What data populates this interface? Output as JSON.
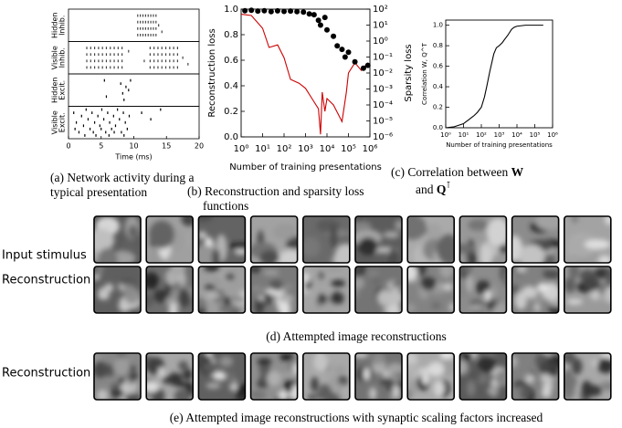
{
  "chart_data": [
    {
      "type": "raster",
      "xlabel": "Time (ms)",
      "xlim": [
        0,
        20
      ],
      "xticks": [
        0,
        5,
        10,
        15,
        20
      ],
      "caption": [
        "(a) Network activity during a",
        "typical presentation"
      ],
      "series": [
        {
          "name": [
            "Hidden",
            "Inhib."
          ],
          "color": "#444444",
          "ylim": [
            0,
            10
          ],
          "x": [
            10.6,
            10.6,
            10.6,
            10.6,
            11,
            11,
            11,
            11,
            11.4,
            11.4,
            11.4,
            11.4,
            11.8,
            11.8,
            11.8,
            11.8,
            12.2,
            12.2,
            12.2,
            12.2,
            12.6,
            12.6,
            12.6,
            12.6,
            13,
            13,
            13,
            13,
            13.4,
            13.4,
            13.4,
            13.4,
            13.8,
            14.3
          ],
          "y": [
            2,
            4,
            6,
            8,
            2,
            4,
            6,
            8,
            2,
            4,
            6,
            8,
            2,
            4,
            6,
            8,
            2,
            4,
            6,
            8,
            2,
            4,
            6,
            8,
            2,
            4,
            6,
            8,
            2,
            4,
            6,
            8,
            5,
            3
          ]
        },
        {
          "name": [
            "Visible",
            "Inhib."
          ],
          "color": "#444444",
          "ylim": [
            0,
            10
          ],
          "x": [
            2.8,
            2.8,
            2.8,
            2.8,
            3.4,
            3.4,
            3.4,
            3.4,
            4,
            4,
            4,
            4,
            4.6,
            4.6,
            4.6,
            4.6,
            5.2,
            5.2,
            5.2,
            5.2,
            5.8,
            5.8,
            5.8,
            5.8,
            6.4,
            6.4,
            6.4,
            6.4,
            7,
            7,
            7,
            7,
            7.6,
            7.6,
            7.6,
            7.6,
            8.2,
            8.2,
            8.2,
            8.2,
            12.5,
            12.5,
            12.5,
            12.5,
            13.1,
            13.1,
            13.1,
            13.1,
            13.7,
            13.7,
            13.7,
            13.7,
            14.3,
            14.3,
            14.3,
            14.3,
            14.9,
            14.9,
            14.9,
            14.9,
            15.5,
            15.5,
            15.5,
            15.5,
            16.1,
            16.1,
            16.1,
            16.1,
            16.7,
            16.7,
            16.7,
            16.7,
            17.5,
            18.3,
            9.2,
            11.6
          ],
          "y": [
            2,
            4,
            6,
            8,
            2,
            4,
            6,
            8,
            2,
            4,
            6,
            8,
            2,
            4,
            6,
            8,
            2,
            4,
            6,
            8,
            2,
            4,
            6,
            8,
            2,
            4,
            6,
            8,
            2,
            4,
            6,
            8,
            2,
            4,
            6,
            8,
            2,
            4,
            6,
            8,
            2,
            4,
            6,
            8,
            2,
            4,
            6,
            8,
            2,
            4,
            6,
            8,
            2,
            4,
            6,
            8,
            2,
            4,
            6,
            8,
            2,
            4,
            6,
            8,
            2,
            4,
            6,
            8,
            2,
            4,
            6,
            8,
            5,
            3,
            7,
            4
          ]
        },
        {
          "name": [
            "Hidden",
            "Excit."
          ],
          "color": "#000000",
          "ylim": [
            0,
            10
          ],
          "x": [
            5.5,
            8,
            8.8,
            8.3,
            9.2,
            8.5,
            5.8,
            9.5
          ],
          "y": [
            8,
            7,
            6,
            4,
            5,
            2,
            3,
            8
          ]
        },
        {
          "name": [
            "Visible",
            "Excit."
          ],
          "color": "#000000",
          "ylim": [
            0,
            10
          ],
          "x": [
            0.8,
            1.2,
            1.6,
            2,
            2.3,
            2.7,
            3,
            3.3,
            3.6,
            4,
            4.2,
            4.5,
            4.8,
            5.1,
            5.4,
            5.7,
            6,
            6.3,
            6.6,
            6.9,
            7.2,
            7.5,
            7.8,
            8.1,
            8.4,
            8.7,
            9,
            9.3,
            1,
            2.5,
            3.8,
            5,
            6.2,
            7,
            8.5,
            11.2,
            12.6,
            14.1
          ],
          "y": [
            8,
            5,
            2,
            7,
            4,
            9,
            6,
            3,
            8,
            5,
            1,
            7,
            4,
            9,
            6,
            2,
            8,
            5,
            3,
            7,
            4,
            9,
            6,
            2,
            8,
            5,
            3,
            7,
            3,
            1,
            2,
            3,
            1,
            2,
            1,
            8,
            6,
            9
          ]
        }
      ]
    },
    {
      "type": "line",
      "xlabel": "Number of training presentations",
      "ylabel": "Reconstruction loss",
      "y2label": "Sparsity loss",
      "caption": [
        "(b) Reconstruction and sparsity loss",
        "functions"
      ],
      "xscale": "log",
      "y2scale": "log",
      "xlim": [
        1,
        1000000
      ],
      "xticks": [
        {
          "value": 1,
          "label": "10⁰"
        },
        {
          "value": 10,
          "label": "10¹"
        },
        {
          "value": 100,
          "label": "10²"
        },
        {
          "value": 1000,
          "label": "10³"
        },
        {
          "value": 10000,
          "label": "10⁴"
        },
        {
          "value": 100000,
          "label": "10⁵"
        },
        {
          "value": 1000000,
          "label": "10⁶"
        }
      ],
      "ylim": [
        0,
        1
      ],
      "yticks": [
        {
          "value": 0,
          "label": "0.0"
        },
        0.2,
        0.4,
        0.6,
        0.8,
        {
          "value": 1,
          "label": "1.0"
        }
      ],
      "y2lim": [
        1e-06,
        100
      ],
      "y2ticks": [
        {
          "value": 1e-06,
          "label": "10⁻⁶"
        },
        {
          "value": 1e-05,
          "label": "10⁻⁵"
        },
        {
          "value": 0.0001,
          "label": "10⁻⁴"
        },
        {
          "value": 0.001,
          "label": "10⁻³"
        },
        {
          "value": 0.01,
          "label": "10⁻²"
        },
        {
          "value": 0.1,
          "label": "10⁻¹"
        },
        {
          "value": 1,
          "label": "10⁰"
        },
        {
          "value": 10,
          "label": "10¹"
        },
        {
          "value": 100,
          "label": "10²"
        }
      ],
      "series": [
        {
          "color": "#cc0000",
          "x": [
            1,
            3,
            10,
            20,
            50,
            100,
            200,
            500,
            1000,
            2000,
            4000,
            5000,
            6000,
            8000,
            10000,
            20000,
            50000,
            80000,
            100000,
            200000,
            400000,
            800000
          ],
          "values": [
            0.96,
            0.95,
            0.85,
            0.7,
            0.72,
            0.62,
            0.45,
            0.42,
            0.38,
            0.3,
            0.22,
            0.02,
            0.35,
            0.2,
            0.3,
            0.25,
            0.12,
            0.35,
            0.5,
            0.58,
            0.52,
            0.58
          ]
        },
        {
          "color": "#000000",
          "axis": "y2",
          "marker": "dot",
          "x": [
            1.5,
            3,
            6,
            12,
            25,
            50,
            100,
            200,
            400,
            800,
            1500,
            2500,
            4000,
            5000,
            8000,
            10000,
            20000,
            30000,
            50000,
            70000,
            100000,
            200000,
            500000,
            800000
          ],
          "values": [
            80,
            85,
            75,
            80,
            70,
            78,
            72,
            75,
            70,
            65,
            50,
            45,
            20,
            10,
            30,
            5,
            2,
            0.5,
            0.3,
            0.1,
            0.2,
            0.05,
            0.02,
            0.03
          ]
        }
      ]
    },
    {
      "type": "line",
      "xlabel": "Number of training presentations",
      "ylabel": "Correlation W, Q^T",
      "caption": [
        [
          "(c) Correlation between ",
          "W"
        ],
        [
          "and ",
          "Q",
          "⊺"
        ]
      ],
      "xscale": "log",
      "xlim": [
        1,
        1000000
      ],
      "xticks": [
        {
          "value": 1,
          "label": "10⁰"
        },
        {
          "value": 10,
          "label": "10¹"
        },
        {
          "value": 100,
          "label": "10²"
        },
        {
          "value": 1000,
          "label": "10³"
        },
        {
          "value": 10000,
          "label": "10⁴"
        },
        {
          "value": 100000,
          "label": "10⁵"
        },
        {
          "value": 1000000,
          "label": "10⁶"
        }
      ],
      "ylim": [
        0,
        1.05
      ],
      "yticks": [
        {
          "value": 0,
          "label": "0.0"
        },
        0.2,
        0.4,
        0.6,
        0.8,
        {
          "value": 1,
          "label": "1.0"
        }
      ],
      "series": [
        {
          "color": "#000000",
          "x": [
            1,
            3,
            10,
            20,
            40,
            60,
            100,
            150,
            200,
            300,
            500,
            700,
            1000,
            1500,
            2000,
            3000,
            5000,
            7000,
            10000,
            30000,
            100000,
            300000
          ],
          "values": [
            0,
            0.01,
            0.04,
            0.08,
            0.12,
            0.15,
            0.2,
            0.3,
            0.4,
            0.55,
            0.72,
            0.78,
            0.8,
            0.83,
            0.86,
            0.9,
            0.96,
            0.98,
            0.99,
            1,
            1,
            1
          ]
        }
      ]
    }
  ],
  "panels": [
    {
      "row_labels": [
        "Input stimulus",
        "Reconstruction"
      ],
      "caption": "(d) Attempted image reconstructions"
    },
    {
      "row_labels": [
        "Reconstruction"
      ],
      "caption": "(e) Attempted image reconstructions with synaptic scaling factors increased"
    }
  ]
}
